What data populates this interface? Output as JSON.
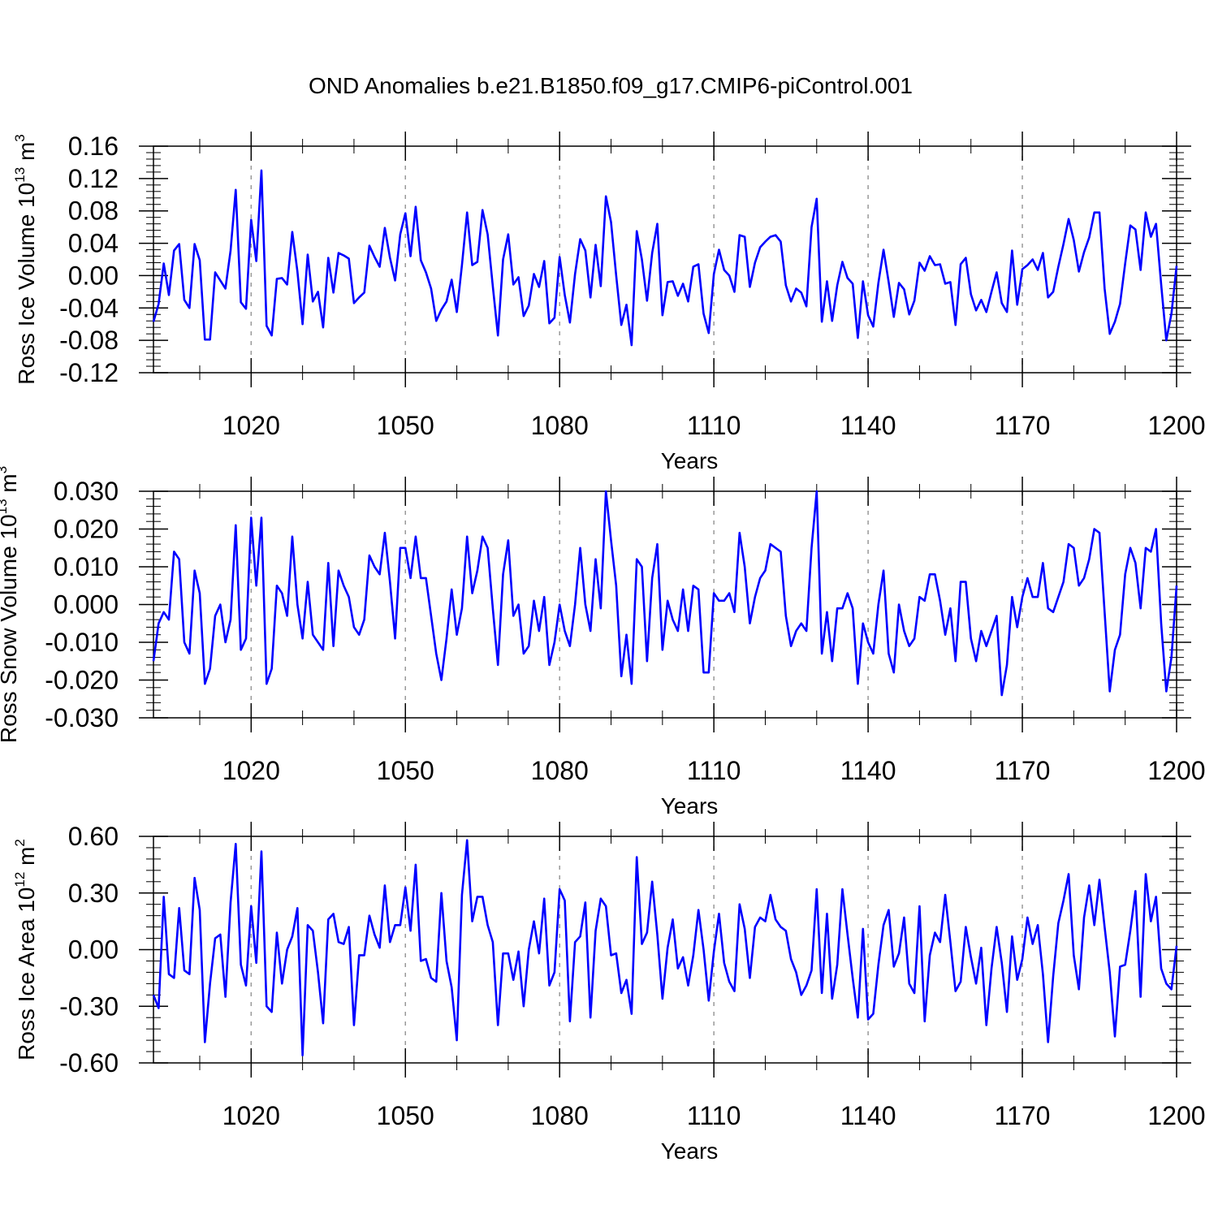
{
  "title": "OND Anomalies b.e21.B1850.f09_g17.CMIP6-piControl.001",
  "colors": {
    "line": "#0000ff",
    "axis": "#000000",
    "grid": "#999999"
  },
  "chart_data": [
    {
      "type": "line",
      "ylabel_main": "Ross Ice Volume 10",
      "ylabel_sup_exp": "13",
      "ylabel_unit": " m",
      "ylabel_unit_exp": "3",
      "xlabel": "Years",
      "xlim": [
        1001,
        1200
      ],
      "ylim": [
        -0.12,
        0.16
      ],
      "xticks": [
        1020,
        1050,
        1080,
        1110,
        1140,
        1170,
        1200
      ],
      "xtick_labels": [
        "1020",
        "1050",
        "1080",
        "1110",
        "1140",
        "1170",
        "1200"
      ],
      "yticks": [
        -0.12,
        -0.08,
        -0.04,
        0.0,
        0.04,
        0.08,
        0.12,
        0.16
      ],
      "ytick_labels": [
        "-0.12",
        "-0.08",
        "-0.04",
        "0.00",
        "0.04",
        "0.08",
        "0.12",
        "0.16"
      ],
      "grid": "vertical dashed at major x ticks",
      "series": [
        {
          "name": "Ross Ice Volume",
          "x_start": 1001,
          "x_step": 1,
          "values": [
            -0.057,
            -0.035,
            0.015,
            -0.024,
            0.031,
            0.039,
            -0.03,
            -0.04,
            0.039,
            0.019,
            -0.079,
            -0.079,
            0.004,
            -0.006,
            -0.016,
            0.031,
            0.106,
            -0.033,
            -0.041,
            0.069,
            0.018,
            0.13,
            -0.062,
            -0.074,
            -0.004,
            -0.003,
            -0.011,
            0.054,
            0.005,
            -0.06,
            0.026,
            -0.032,
            -0.02,
            -0.064,
            0.022,
            -0.021,
            0.028,
            0.025,
            0.021,
            -0.034,
            -0.027,
            -0.021,
            0.037,
            0.023,
            0.011,
            0.059,
            0.022,
            -0.006,
            0.051,
            0.077,
            0.024,
            0.085,
            0.019,
            0.004,
            -0.016,
            -0.056,
            -0.042,
            -0.032,
            -0.005,
            -0.045,
            0.013,
            0.078,
            0.013,
            0.017,
            0.081,
            0.051,
            -0.013,
            -0.074,
            0.02,
            0.051,
            -0.011,
            -0.002,
            -0.05,
            -0.037,
            0.002,
            -0.014,
            0.018,
            -0.059,
            -0.052,
            0.023,
            -0.024,
            -0.058,
            0.002,
            0.045,
            0.031,
            -0.027,
            0.038,
            -0.013,
            0.098,
            0.066,
            0.0,
            -0.061,
            -0.036,
            -0.086,
            0.055,
            0.02,
            -0.031,
            0.028,
            0.064,
            -0.049,
            -0.008,
            -0.007,
            -0.025,
            -0.01,
            -0.032,
            0.011,
            0.014,
            -0.047,
            -0.071,
            0.002,
            0.032,
            0.007,
            0.0,
            -0.02,
            0.05,
            0.048,
            -0.014,
            0.016,
            0.035,
            0.042,
            0.048,
            0.05,
            0.042,
            -0.012,
            -0.032,
            -0.016,
            -0.021,
            -0.038,
            0.06,
            0.095,
            -0.057,
            -0.007,
            -0.056,
            -0.012,
            0.017,
            -0.003,
            -0.01,
            -0.077,
            -0.007,
            -0.049,
            -0.063,
            -0.009,
            0.032,
            -0.008,
            -0.051,
            -0.009,
            -0.017,
            -0.048,
            -0.031,
            0.016,
            0.006,
            0.024,
            0.013,
            0.014,
            -0.01,
            -0.008,
            -0.061,
            0.014,
            0.022,
            -0.023,
            -0.043,
            -0.03,
            -0.045,
            -0.02,
            0.004,
            -0.034,
            -0.045,
            0.031,
            -0.036,
            0.008,
            0.013,
            0.02,
            0.007,
            0.028,
            -0.027,
            -0.02,
            0.011,
            0.039,
            0.07,
            0.044,
            0.005,
            0.029,
            0.047,
            0.078,
            0.078,
            -0.016,
            -0.072,
            -0.057,
            -0.035,
            0.015,
            0.062,
            0.057,
            0.007,
            0.078,
            0.048,
            0.064,
            -0.011,
            -0.08,
            -0.047,
            0.012
          ]
        }
      ]
    },
    {
      "type": "line",
      "ylabel_main": "Ross Snow Volume 10",
      "ylabel_sup_exp": "13",
      "ylabel_unit": " m",
      "ylabel_unit_exp": "3",
      "xlabel": "Years",
      "xlim": [
        1001,
        1200
      ],
      "ylim": [
        -0.03,
        0.03
      ],
      "xticks": [
        1020,
        1050,
        1080,
        1110,
        1140,
        1170,
        1200
      ],
      "xtick_labels": [
        "1020",
        "1050",
        "1080",
        "1110",
        "1140",
        "1170",
        "1200"
      ],
      "yticks": [
        -0.03,
        -0.02,
        -0.01,
        0.0,
        0.01,
        0.02,
        0.03
      ],
      "ytick_labels": [
        "-0.030",
        "-0.020",
        "-0.010",
        "0.000",
        "0.010",
        "0.020",
        "0.030"
      ],
      "grid": "vertical dashed at major x ticks",
      "series": [
        {
          "name": "Ross Snow Volume",
          "x_start": 1001,
          "x_step": 1,
          "values": [
            -0.015,
            -0.005,
            -0.002,
            -0.004,
            0.014,
            0.012,
            -0.01,
            -0.013,
            0.009,
            0.003,
            -0.021,
            -0.017,
            -0.003,
            0.0,
            -0.01,
            -0.004,
            0.021,
            -0.012,
            -0.009,
            0.023,
            0.005,
            0.023,
            -0.021,
            -0.017,
            0.005,
            0.003,
            -0.003,
            0.018,
            0.0,
            -0.009,
            0.006,
            -0.008,
            -0.01,
            -0.012,
            0.011,
            -0.011,
            0.009,
            0.005,
            0.002,
            -0.006,
            -0.008,
            -0.004,
            0.013,
            0.01,
            0.008,
            0.019,
            0.006,
            -0.009,
            0.015,
            0.015,
            0.007,
            0.018,
            0.007,
            0.007,
            -0.003,
            -0.013,
            -0.02,
            -0.009,
            0.004,
            -0.008,
            -0.001,
            0.018,
            0.003,
            0.009,
            0.018,
            0.015,
            -0.001,
            -0.016,
            0.008,
            0.017,
            -0.003,
            0.0,
            -0.013,
            -0.011,
            0.001,
            -0.007,
            0.002,
            -0.016,
            -0.01,
            0.0,
            -0.007,
            -0.011,
            0.0,
            0.015,
            0.0,
            -0.007,
            0.012,
            -0.001,
            0.03,
            0.017,
            0.005,
            -0.019,
            -0.008,
            -0.021,
            0.012,
            0.01,
            -0.015,
            0.007,
            0.016,
            -0.012,
            0.001,
            -0.004,
            -0.007,
            0.004,
            -0.007,
            0.005,
            0.004,
            -0.018,
            -0.018,
            0.003,
            0.001,
            0.001,
            0.003,
            -0.002,
            0.019,
            0.01,
            -0.005,
            0.002,
            0.007,
            0.009,
            0.016,
            0.015,
            0.014,
            -0.003,
            -0.011,
            -0.007,
            -0.005,
            -0.007,
            0.015,
            0.03,
            -0.013,
            -0.002,
            -0.015,
            -0.001,
            -0.001,
            0.003,
            -0.001,
            -0.021,
            -0.005,
            -0.01,
            -0.013,
            0.0,
            0.009,
            -0.013,
            -0.018,
            0.0,
            -0.007,
            -0.011,
            -0.009,
            0.002,
            0.001,
            0.008,
            0.008,
            0.001,
            -0.008,
            -0.001,
            -0.015,
            0.006,
            0.006,
            -0.009,
            -0.015,
            -0.007,
            -0.011,
            -0.007,
            -0.003,
            -0.024,
            -0.016,
            0.002,
            -0.006,
            0.002,
            0.007,
            0.002,
            0.002,
            0.011,
            -0.001,
            -0.002,
            0.002,
            0.006,
            0.016,
            0.015,
            0.005,
            0.007,
            0.012,
            0.02,
            0.019,
            -0.002,
            -0.023,
            -0.012,
            -0.008,
            0.008,
            0.015,
            0.011,
            -0.001,
            0.015,
            0.014,
            0.02,
            -0.005,
            -0.023,
            -0.014,
            0.005
          ]
        }
      ]
    },
    {
      "type": "line",
      "ylabel_main": "Ross Ice Area 10",
      "ylabel_sup_exp": "12",
      "ylabel_unit": " m",
      "ylabel_unit_exp": "2",
      "xlabel": "Years",
      "xlim": [
        1001,
        1200
      ],
      "ylim": [
        -0.6,
        0.6
      ],
      "xticks": [
        1020,
        1050,
        1080,
        1110,
        1140,
        1170,
        1200
      ],
      "xtick_labels": [
        "1020",
        "1050",
        "1080",
        "1110",
        "1140",
        "1170",
        "1200"
      ],
      "yticks": [
        -0.6,
        -0.3,
        0.0,
        0.3,
        0.6
      ],
      "ytick_labels": [
        "-0.60",
        "-0.30",
        "0.00",
        "0.30",
        "0.60"
      ],
      "grid": "vertical dashed at major x ticks",
      "series": [
        {
          "name": "Ross Ice Area",
          "x_start": 1001,
          "x_step": 1,
          "values": [
            -0.24,
            -0.31,
            0.28,
            -0.13,
            -0.15,
            0.22,
            -0.11,
            -0.13,
            0.38,
            0.21,
            -0.49,
            -0.18,
            0.06,
            0.08,
            -0.25,
            0.25,
            0.56,
            -0.08,
            -0.19,
            0.23,
            -0.07,
            0.52,
            -0.3,
            -0.33,
            0.09,
            -0.18,
            0.0,
            0.07,
            0.22,
            -0.56,
            0.13,
            0.1,
            -0.12,
            -0.39,
            0.16,
            0.19,
            0.04,
            0.03,
            0.12,
            -0.4,
            -0.03,
            -0.03,
            0.18,
            0.08,
            0.01,
            0.34,
            0.04,
            0.13,
            0.13,
            0.33,
            0.1,
            0.45,
            -0.06,
            -0.05,
            -0.15,
            -0.17,
            0.3,
            -0.06,
            -0.2,
            -0.48,
            0.29,
            0.58,
            0.15,
            0.28,
            0.28,
            0.13,
            0.04,
            -0.4,
            -0.02,
            -0.02,
            -0.16,
            -0.01,
            -0.3,
            0.0,
            0.15,
            -0.02,
            0.27,
            -0.19,
            -0.12,
            0.32,
            0.26,
            -0.38,
            0.04,
            0.07,
            0.25,
            -0.36,
            0.1,
            0.27,
            0.23,
            -0.03,
            -0.02,
            -0.23,
            -0.16,
            -0.34,
            0.49,
            0.03,
            0.09,
            0.36,
            0.08,
            -0.26,
            0.01,
            0.16,
            -0.1,
            -0.04,
            -0.19,
            -0.03,
            0.21,
            0.0,
            -0.27,
            -0.01,
            0.19,
            -0.07,
            -0.17,
            -0.22,
            0.24,
            0.11,
            -0.15,
            0.12,
            0.17,
            0.15,
            0.29,
            0.16,
            0.12,
            0.1,
            -0.05,
            -0.12,
            -0.24,
            -0.19,
            -0.11,
            0.32,
            -0.23,
            0.19,
            -0.26,
            -0.08,
            0.32,
            0.08,
            -0.15,
            -0.36,
            0.11,
            -0.37,
            -0.34,
            -0.08,
            0.13,
            0.21,
            -0.09,
            -0.02,
            0.17,
            -0.18,
            -0.23,
            0.23,
            -0.38,
            -0.03,
            0.09,
            0.04,
            0.29,
            0.04,
            -0.22,
            -0.17,
            0.12,
            -0.04,
            -0.18,
            0.01,
            -0.4,
            -0.1,
            0.12,
            -0.07,
            -0.33,
            0.07,
            -0.16,
            -0.05,
            0.17,
            0.03,
            0.13,
            -0.13,
            -0.49,
            -0.14,
            0.14,
            0.26,
            0.4,
            -0.03,
            -0.21,
            0.17,
            0.34,
            0.13,
            0.37,
            0.12,
            -0.12,
            -0.46,
            -0.09,
            -0.08,
            0.1,
            0.31,
            -0.25,
            0.4,
            0.15,
            0.28,
            -0.1,
            -0.18,
            -0.21,
            0.02
          ]
        }
      ]
    }
  ]
}
